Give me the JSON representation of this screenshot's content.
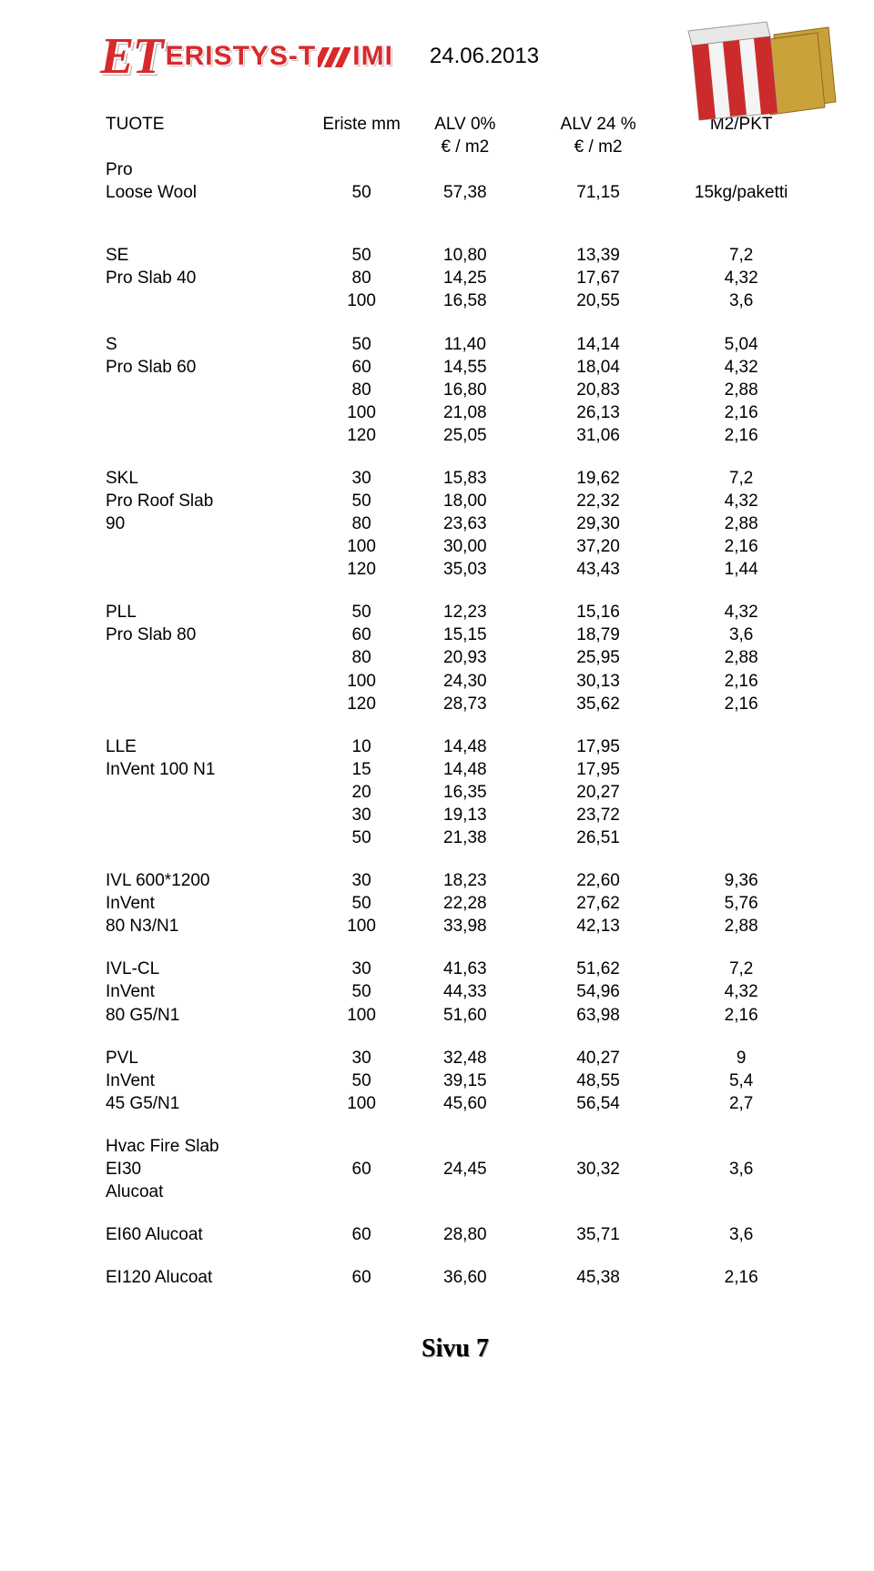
{
  "logo": {
    "et": "ET",
    "brand": "ERISTYS-TOIMI"
  },
  "date": "24.06.2013",
  "header": {
    "c1": "TUOTE",
    "c2": "Eriste mm",
    "c3a": "ALV  0%",
    "c3b": "€ / m2",
    "c4a": "ALV 24 %",
    "c4b": "€ / m2",
    "c5": "M2/PKT"
  },
  "rows": [
    {
      "l": "Pro"
    },
    {
      "l": "Loose  Wool",
      "mm": "50",
      "a0": "57,38",
      "a24": "71,15",
      "m2": "15kg/paketti"
    },
    {
      "spacer": true
    },
    {
      "spacer": true
    },
    {
      "l": "SE",
      "mm": "50",
      "a0": "10,80",
      "a24": "13,39",
      "m2": "7,2"
    },
    {
      "l": "Pro Slab 40",
      "mm": "80",
      "a0": "14,25",
      "a24": "17,67",
      "m2": "4,32"
    },
    {
      "l": "",
      "mm": "100",
      "a0": "16,58",
      "a24": "20,55",
      "m2": "3,6"
    },
    {
      "spacer": true
    },
    {
      "l": "S",
      "mm": "50",
      "a0": "11,40",
      "a24": "14,14",
      "m2": "5,04"
    },
    {
      "l": "Pro Slab 60",
      "mm": "60",
      "a0": "14,55",
      "a24": "18,04",
      "m2": "4,32"
    },
    {
      "l": "",
      "mm": "80",
      "a0": "16,80",
      "a24": "20,83",
      "m2": "2,88"
    },
    {
      "l": "",
      "mm": "100",
      "a0": "21,08",
      "a24": "26,13",
      "m2": "2,16"
    },
    {
      "l": "",
      "mm": "120",
      "a0": "25,05",
      "a24": "31,06",
      "m2": "2,16"
    },
    {
      "spacer": true
    },
    {
      "l": "SKL",
      "mm": "30",
      "a0": "15,83",
      "a24": "19,62",
      "m2": "7,2"
    },
    {
      "l": "Pro Roof Slab",
      "mm": "50",
      "a0": "18,00",
      "a24": "22,32",
      "m2": "4,32"
    },
    {
      "l": "90",
      "mm": "80",
      "a0": "23,63",
      "a24": "29,30",
      "m2": "2,88"
    },
    {
      "l": "",
      "mm": "100",
      "a0": "30,00",
      "a24": "37,20",
      "m2": "2,16"
    },
    {
      "l": "",
      "mm": "120",
      "a0": "35,03",
      "a24": "43,43",
      "m2": "1,44"
    },
    {
      "spacer": true
    },
    {
      "l": "PLL",
      "mm": "50",
      "a0": "12,23",
      "a24": "15,16",
      "m2": "4,32"
    },
    {
      "l": "Pro Slab 80",
      "mm": "60",
      "a0": "15,15",
      "a24": "18,79",
      "m2": "3,6"
    },
    {
      "l": "",
      "mm": "80",
      "a0": "20,93",
      "a24": "25,95",
      "m2": "2,88"
    },
    {
      "l": "",
      "mm": "100",
      "a0": "24,30",
      "a24": "30,13",
      "m2": "2,16"
    },
    {
      "l": "",
      "mm": "120",
      "a0": "28,73",
      "a24": "35,62",
      "m2": "2,16"
    },
    {
      "spacer": true
    },
    {
      "l": "LLE",
      "mm": "10",
      "a0": "14,48",
      "a24": "17,95",
      "m2": ""
    },
    {
      "l": "InVent 100 N1",
      "mm": "15",
      "a0": "14,48",
      "a24": "17,95",
      "m2": ""
    },
    {
      "l": "",
      "mm": "20",
      "a0": "16,35",
      "a24": "20,27",
      "m2": ""
    },
    {
      "l": "",
      "mm": "30",
      "a0": "19,13",
      "a24": "23,72",
      "m2": ""
    },
    {
      "l": "",
      "mm": "50",
      "a0": "21,38",
      "a24": "26,51",
      "m2": ""
    },
    {
      "spacer": true
    },
    {
      "l": "IVL 600*1200",
      "mm": "30",
      "a0": "18,23",
      "a24": "22,60",
      "m2": "9,36"
    },
    {
      "l": "InVent",
      "mm": "50",
      "a0": "22,28",
      "a24": "27,62",
      "m2": "5,76"
    },
    {
      "l": "80 N3/N1",
      "mm": "100",
      "a0": "33,98",
      "a24": "42,13",
      "m2": "2,88"
    },
    {
      "spacer": true
    },
    {
      "l": "IVL-CL",
      "mm": "30",
      "a0": "41,63",
      "a24": "51,62",
      "m2": "7,2"
    },
    {
      "l": "InVent",
      "mm": "50",
      "a0": "44,33",
      "a24": "54,96",
      "m2": "4,32"
    },
    {
      "l": "80 G5/N1",
      "mm": "100",
      "a0": "51,60",
      "a24": "63,98",
      "m2": "2,16"
    },
    {
      "spacer": true
    },
    {
      "l": "PVL",
      "mm": "30",
      "a0": "32,48",
      "a24": "40,27",
      "m2": "9"
    },
    {
      "l": "InVent",
      "mm": "50",
      "a0": "39,15",
      "a24": "48,55",
      "m2": "5,4"
    },
    {
      "l": "45 G5/N1",
      "mm": "100",
      "a0": "45,60",
      "a24": "56,54",
      "m2": "2,7"
    },
    {
      "spacer": true
    },
    {
      "l": "Hvac Fire Slab"
    },
    {
      "l": "EI30",
      "mm": "60",
      "a0": "24,45",
      "a24": "30,32",
      "m2": "3,6"
    },
    {
      "l": "Alucoat"
    },
    {
      "spacer": true
    },
    {
      "l": "EI60 Alucoat",
      "mm": "60",
      "a0": "28,80",
      "a24": "35,71",
      "m2": "3,6"
    },
    {
      "spacer": true
    },
    {
      "l": "EI120 Alucoat",
      "mm": "60",
      "a0": "36,60",
      "a24": "45,38",
      "m2": "2,16"
    }
  ],
  "footer": "Sivu 7",
  "styles": {
    "brand_color": "#d8292b",
    "product_board_color": "#c9a038",
    "product_stripe_color": "#cc2b2b"
  }
}
